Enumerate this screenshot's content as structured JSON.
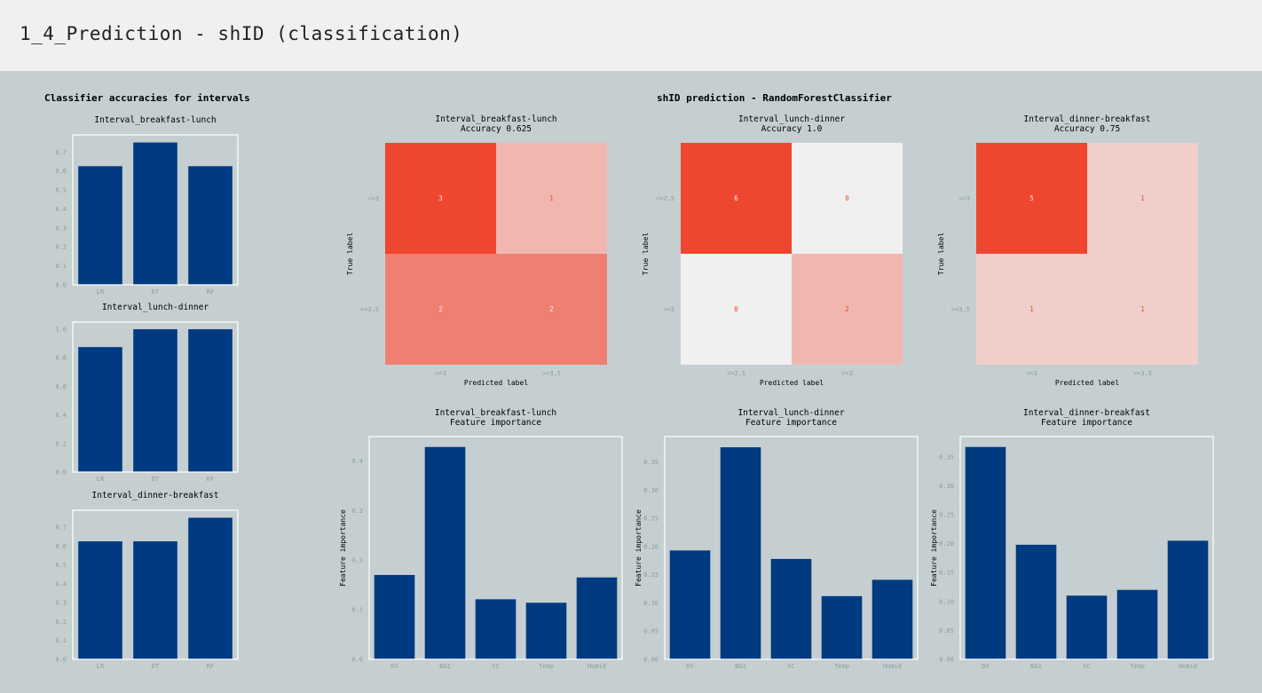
{
  "page": {
    "title": "1_4_Prediction - shID (classification)"
  },
  "left_panel": {
    "suptitle": "Classifier accuracies for intervals"
  },
  "right_panel": {
    "suptitle": "shID prediction - RandomForestClassifier"
  },
  "colors": {
    "bar": "#003a80",
    "plot_bg": "#c5cfd1",
    "axes_border": "#ffffff",
    "tick_label": "#8c9a9e",
    "cm_high": "#ef4630",
    "cm_low": "#f0f0f0",
    "cm_text_dark": "#f0f0f0",
    "cm_text_light": "#ef4630"
  },
  "chart_data": [
    {
      "id": "acc-breakfast-lunch",
      "type": "bar",
      "title": "Interval_breakfast-lunch",
      "categories": [
        "LR",
        "DT",
        "RF"
      ],
      "values": [
        0.625,
        0.75,
        0.625
      ],
      "ylim": [
        0,
        0.79
      ],
      "yticks": [
        "0.0",
        "0.1",
        "0.2",
        "0.3",
        "0.4",
        "0.5",
        "0.6",
        "0.7"
      ],
      "ytick_values": [
        0,
        0.1,
        0.2,
        0.3,
        0.4,
        0.5,
        0.6,
        0.7
      ],
      "xlabel": "",
      "ylabel": ""
    },
    {
      "id": "acc-lunch-dinner",
      "type": "bar",
      "title": "Interval_lunch-dinner",
      "categories": [
        "LR",
        "DT",
        "RF"
      ],
      "values": [
        0.875,
        1.0,
        1.0
      ],
      "ylim": [
        0,
        1.05
      ],
      "yticks": [
        "0.0",
        "0.2",
        "0.4",
        "0.6",
        "0.8",
        "1.0"
      ],
      "ytick_values": [
        0,
        0.2,
        0.4,
        0.6,
        0.8,
        1.0
      ],
      "xlabel": "",
      "ylabel": ""
    },
    {
      "id": "acc-dinner-breakfast",
      "type": "bar",
      "title": "Interval_dinner-breakfast",
      "categories": [
        "LR",
        "DT",
        "RF"
      ],
      "values": [
        0.625,
        0.625,
        0.75
      ],
      "ylim": [
        0,
        0.79
      ],
      "yticks": [
        "0.0",
        "0.1",
        "0.2",
        "0.3",
        "0.4",
        "0.5",
        "0.6",
        "0.7"
      ],
      "ytick_values": [
        0,
        0.1,
        0.2,
        0.3,
        0.4,
        0.5,
        0.6,
        0.7
      ],
      "xlabel": "",
      "ylabel": ""
    },
    {
      "id": "cm-breakfast-lunch",
      "type": "heatmap",
      "title": "Interval_breakfast-lunch",
      "subtitle": "Accuracy 0.625",
      "xlabel": "Predicted label",
      "ylabel": "True label",
      "row_labels": [
        "<=3",
        ">=3.5"
      ],
      "col_labels": [
        "<=3",
        ">=3.5"
      ],
      "values": [
        [
          3,
          1
        ],
        [
          2,
          2
        ]
      ],
      "vmax": 3
    },
    {
      "id": "cm-lunch-dinner",
      "type": "heatmap",
      "title": "Interval_lunch-dinner",
      "subtitle": "Accuracy 1.0",
      "xlabel": "Predicted label",
      "ylabel": "True label",
      "row_labels": [
        "<=2.5",
        ">=3"
      ],
      "col_labels": [
        "<=2.5",
        ">=3"
      ],
      "values": [
        [
          6,
          0
        ],
        [
          0,
          2
        ]
      ],
      "vmax": 6
    },
    {
      "id": "cm-dinner-breakfast",
      "type": "heatmap",
      "title": "Interval_dinner-breakfast",
      "subtitle": "Accuracy 0.75",
      "xlabel": "Predicted label",
      "ylabel": "True label",
      "row_labels": [
        "<=3",
        ">=3.5"
      ],
      "col_labels": [
        "<=3",
        ">=3.5"
      ],
      "values": [
        [
          5,
          1
        ],
        [
          1,
          1
        ]
      ],
      "vmax": 5
    },
    {
      "id": "fi-breakfast-lunch",
      "type": "bar",
      "title": "Interval_breakfast-lunch",
      "subtitle": "Feature importance",
      "categories": [
        "DV",
        "BG1",
        "SC",
        "Temp",
        "Humid"
      ],
      "values": [
        0.17,
        0.428,
        0.121,
        0.114,
        0.165
      ],
      "ylim": [
        0,
        0.449
      ],
      "yticks": [
        "0.0",
        "0.1",
        "0.2",
        "0.3",
        "0.4"
      ],
      "ytick_values": [
        0,
        0.1,
        0.2,
        0.3,
        0.4
      ],
      "xlabel": "",
      "ylabel": "Feature importance"
    },
    {
      "id": "fi-lunch-dinner",
      "type": "bar",
      "title": "Interval_lunch-dinner",
      "subtitle": "Feature importance",
      "categories": [
        "DV",
        "BG1",
        "SC",
        "Temp",
        "Humid"
      ],
      "values": [
        0.193,
        0.376,
        0.178,
        0.112,
        0.141
      ],
      "ylim": [
        0,
        0.395
      ],
      "yticks": [
        "0.00",
        "0.05",
        "0.10",
        "0.15",
        "0.20",
        "0.25",
        "0.30",
        "0.35"
      ],
      "ytick_values": [
        0,
        0.05,
        0.1,
        0.15,
        0.2,
        0.25,
        0.3,
        0.35
      ],
      "xlabel": "",
      "ylabel": "Feature importance"
    },
    {
      "id": "fi-dinner-breakfast",
      "type": "bar",
      "title": "Interval_dinner-breakfast",
      "subtitle": "Feature importance",
      "categories": [
        "DV",
        "BG1",
        "SC",
        "Temp",
        "Humid"
      ],
      "values": [
        0.367,
        0.198,
        0.11,
        0.12,
        0.205
      ],
      "ylim": [
        0,
        0.385
      ],
      "yticks": [
        "0.00",
        "0.05",
        "0.10",
        "0.15",
        "0.20",
        "0.25",
        "0.30",
        "0.35"
      ],
      "ytick_values": [
        0,
        0.05,
        0.1,
        0.15,
        0.2,
        0.25,
        0.3,
        0.35
      ],
      "xlabel": "",
      "ylabel": "Feature importance"
    }
  ]
}
